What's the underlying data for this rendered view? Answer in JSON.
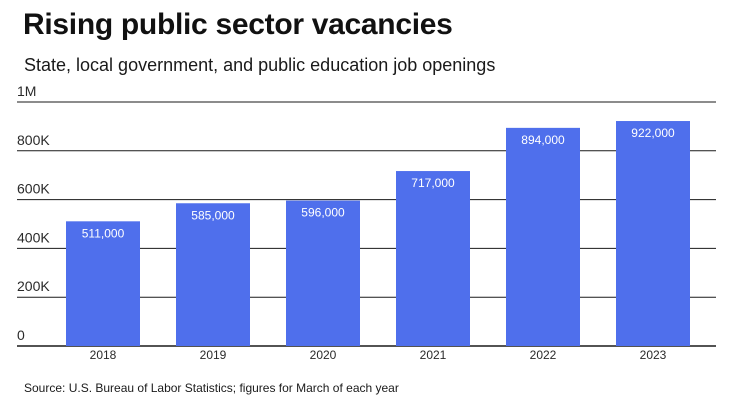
{
  "header": {
    "title": "Rising public sector vacancies",
    "subtitle": "State, local government, and public education job openings"
  },
  "footer": {
    "source": "Source: U.S. Bureau of Labor Statistics; figures for March of each year"
  },
  "chart_data": {
    "type": "bar",
    "title": "Rising public sector vacancies",
    "subtitle": "State, local government, and public education job openings",
    "categories": [
      "2018",
      "2019",
      "2020",
      "2021",
      "2022",
      "2023"
    ],
    "values": [
      511000,
      585000,
      596000,
      717000,
      894000,
      922000
    ],
    "data_labels": [
      "511,000",
      "585,000",
      "596,000",
      "717,000",
      "894,000",
      "922,000"
    ],
    "xlabel": "",
    "ylabel": "",
    "ylim": [
      0,
      1000000
    ],
    "yticks": [
      0,
      200000,
      400000,
      600000,
      800000,
      1000000
    ],
    "ytick_labels": [
      "0",
      "200K",
      "400K",
      "600K",
      "800K",
      "1M"
    ],
    "grid": true,
    "legend": "none",
    "bar_color": "#4f6fec",
    "grid_color": "#1a1a1a"
  }
}
